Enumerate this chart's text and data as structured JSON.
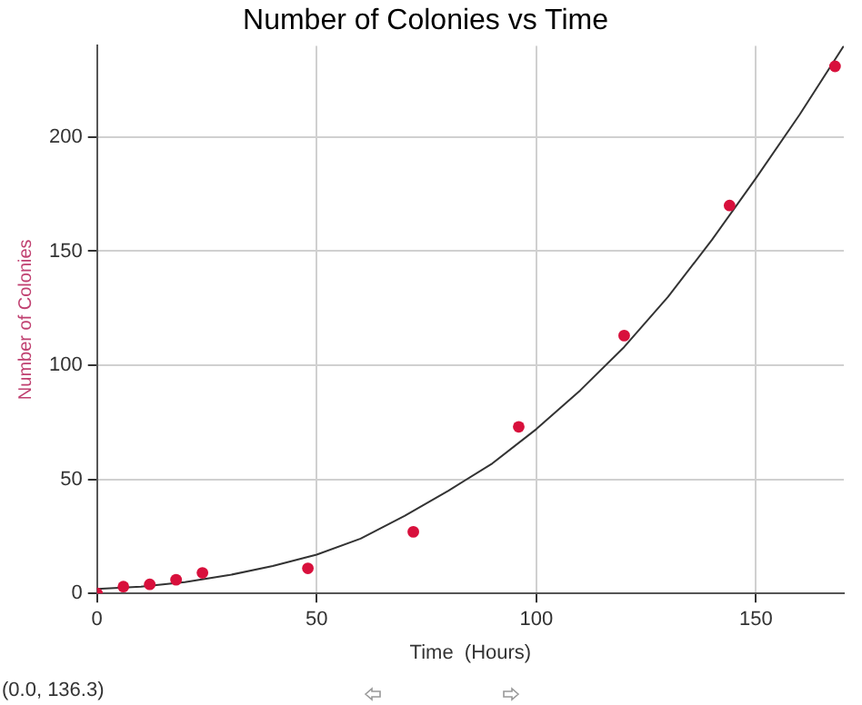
{
  "chart_data": {
    "type": "scatter",
    "title": "Number of Colonies vs Time",
    "xlabel": "Time  (Hours)",
    "ylabel": "Number of Colonies",
    "xlim": [
      0,
      170
    ],
    "xticks": [
      0,
      50,
      100,
      150
    ],
    "ylim": [
      0,
      240
    ],
    "yticks": [
      0,
      50,
      100,
      150,
      200
    ],
    "grid": true,
    "legend": false,
    "series": [
      {
        "marker": "circle",
        "color": "#d8103c",
        "x": [
          0,
          6,
          12,
          18,
          24,
          48,
          72,
          96,
          120,
          144,
          168
        ],
        "values": [
          0,
          3,
          4,
          6,
          9,
          11,
          27,
          73,
          113,
          170,
          231
        ]
      },
      {
        "type": "line",
        "marker": "none",
        "color": "#333333",
        "x": [
          0,
          10,
          20,
          30,
          40,
          50,
          60,
          70,
          80,
          90,
          100,
          110,
          120,
          130,
          140,
          150,
          160,
          170
        ],
        "values": [
          2,
          3,
          5,
          8,
          12,
          17,
          24,
          34,
          45,
          57,
          72,
          89,
          108,
          130,
          155,
          182,
          210,
          240
        ]
      }
    ],
    "annotations": [
      "(0.0, 136.3)"
    ]
  }
}
